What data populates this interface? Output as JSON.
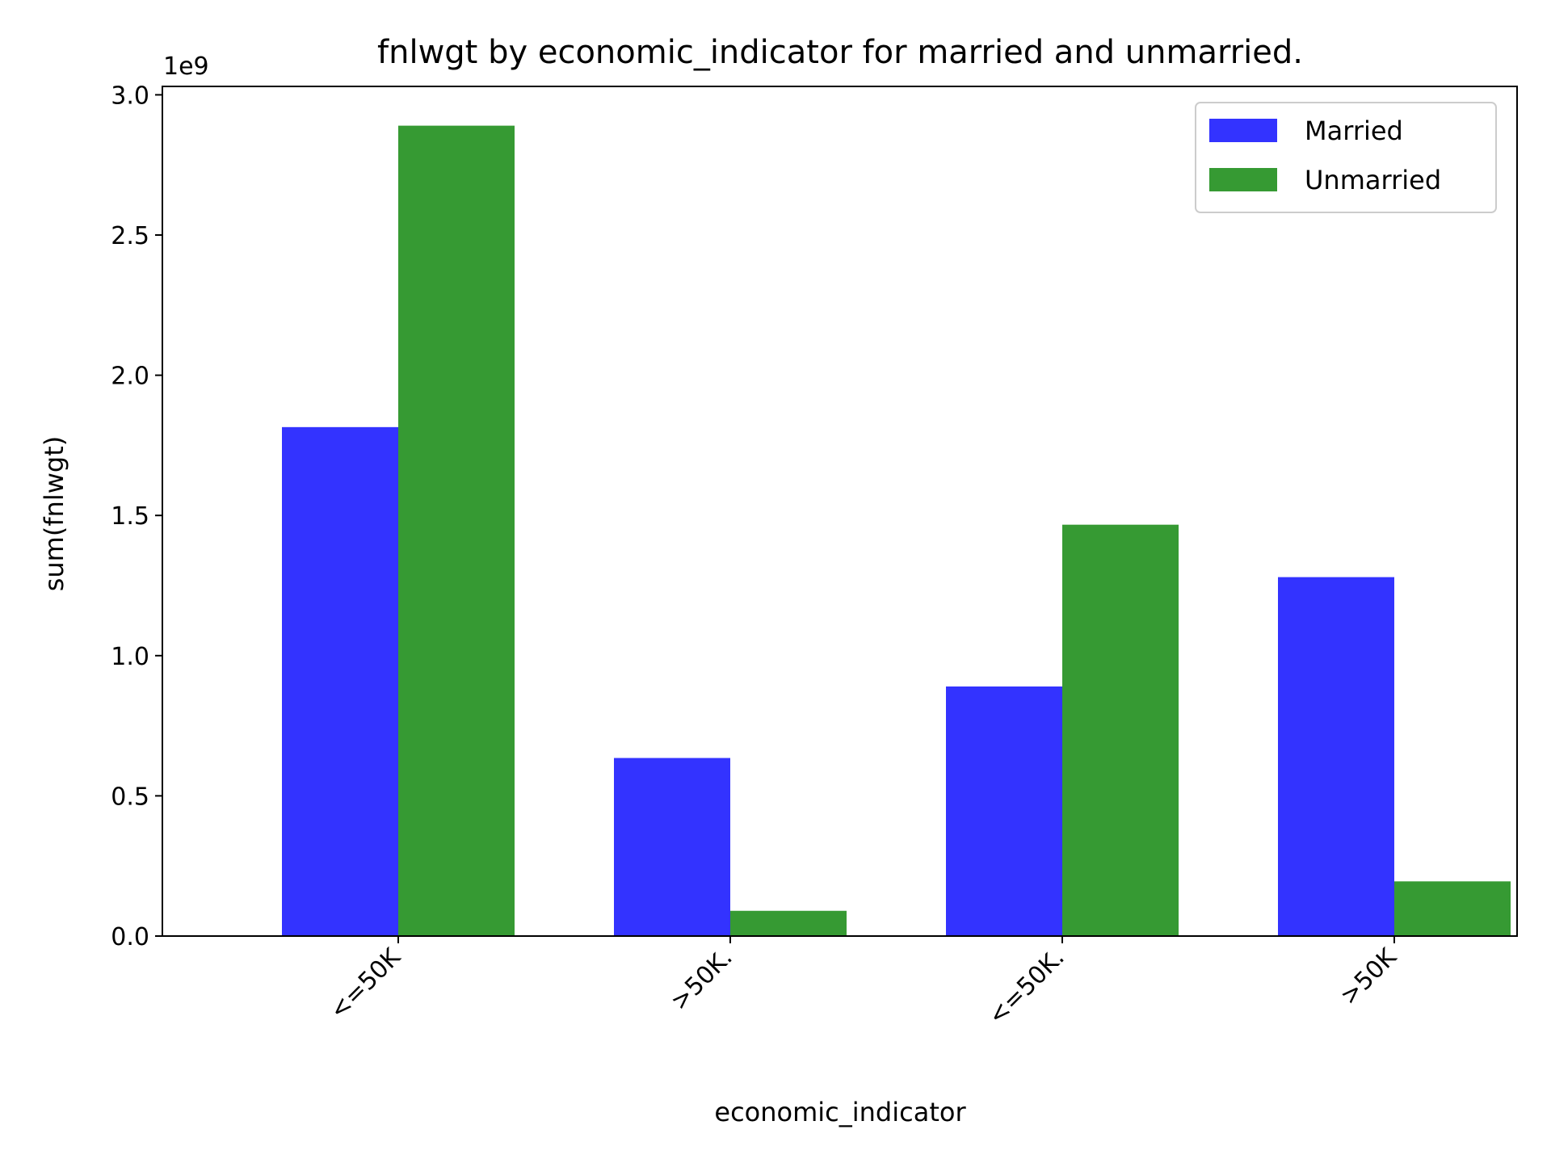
{
  "chart_data": {
    "type": "bar",
    "title": "fnlwgt by economic_indicator for married and unmarried.",
    "xlabel": "economic_indicator",
    "ylabel": "sum(fnlwgt)",
    "offset_label": "1e9",
    "categories": [
      "<=50K",
      ">50K.",
      "<=50K.",
      ">50K"
    ],
    "series": [
      {
        "name": "Married",
        "color": "#3333ff",
        "values": [
          1815000000.0,
          635000000.0,
          890000000.0,
          1280000000.0
        ]
      },
      {
        "name": "Unmarried",
        "color": "#369a33",
        "values": [
          2890000000.0,
          90000000.0,
          1467000000.0,
          195000000.0
        ]
      }
    ],
    "ylim": [
      0,
      3030000000.0
    ],
    "yticks": [
      0,
      500000000.0,
      1000000000.0,
      1500000000.0,
      2000000000.0,
      2500000000.0,
      3000000000.0
    ],
    "ytick_labels": [
      "0.0",
      "0.5",
      "1.0",
      "1.5",
      "2.0",
      "2.5",
      "3.0"
    ],
    "legend_position": "top-right",
    "grid": false
  }
}
